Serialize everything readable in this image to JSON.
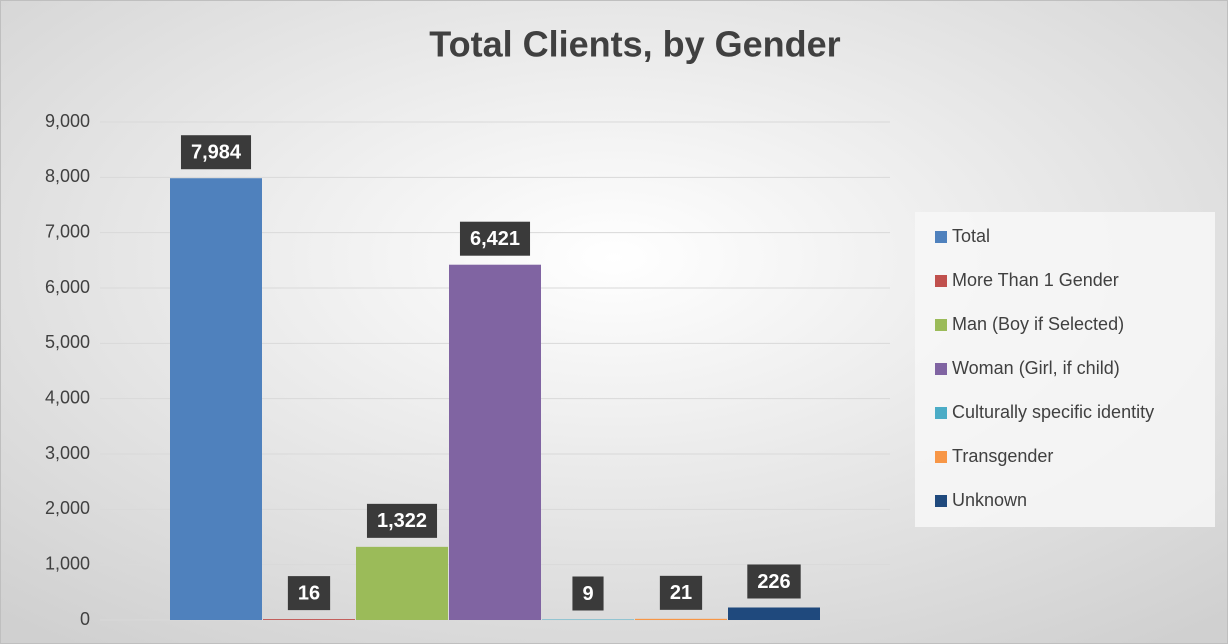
{
  "chart_data": {
    "type": "bar",
    "title": "Total Clients, by Gender",
    "categories": [
      null
    ],
    "series": [
      {
        "name": "Total",
        "color": "#4f81bd",
        "values": [
          7984
        ],
        "value_labels": [
          "7,984"
        ]
      },
      {
        "name": "More Than 1 Gender",
        "color": "#c0504d",
        "values": [
          16
        ]
      },
      {
        "name": "Man (Boy if Selected)",
        "color": "#9bbb59",
        "values": [
          1322
        ],
        "value_labels": [
          "1,322"
        ]
      },
      {
        "name": "Woman (Girl, if child)",
        "color": "#8064a2",
        "values": [
          6421
        ],
        "value_labels": [
          "6,421"
        ]
      },
      {
        "name": "Culturally specific identity",
        "color": "#4bacc6",
        "values": [
          9
        ]
      },
      {
        "name": "Transgender",
        "color": "#f79646",
        "values": [
          21
        ]
      },
      {
        "name": "Unknown",
        "color": "#1f497d",
        "values": [
          226
        ]
      }
    ],
    "ylim": [
      0,
      9000
    ],
    "yticks": [
      0,
      {
        "value": 1000,
        "label": "1,000"
      },
      {
        "value": 2000,
        "label": "2,000"
      },
      {
        "value": 3000,
        "label": "3,000"
      },
      {
        "value": 4000,
        "label": "4,000"
      },
      {
        "value": 5000,
        "label": "5,000"
      },
      {
        "value": 6000,
        "label": "6,000"
      },
      {
        "value": 7000,
        "label": "7,000"
      },
      {
        "value": 8000,
        "label": "8,000"
      },
      {
        "value": 9000,
        "label": "9,000"
      }
    ],
    "grid": true,
    "legend": "right"
  }
}
